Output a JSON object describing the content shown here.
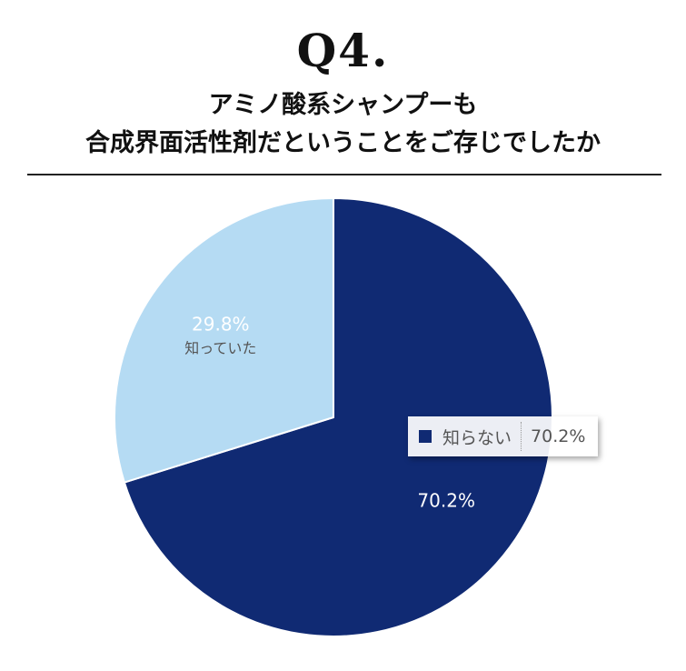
{
  "header": {
    "q_number": "Q4.",
    "line1": "アミノ酸系シャンプーも",
    "line2": "合成界面活性剤だということをご存じでしたか"
  },
  "chart_data": {
    "type": "pie",
    "slices": [
      {
        "label": "知らない",
        "value": 70.2,
        "pct_text": "70.2%",
        "show_label_in_slice": false,
        "color": "#102a73"
      },
      {
        "label": "知っていた",
        "value": 29.8,
        "pct_text": "29.8%",
        "show_label_in_slice": true,
        "color": "#b5dbf3"
      }
    ],
    "start": "12 o'clock",
    "direction": "clockwise"
  },
  "tooltip": {
    "name": "知らない",
    "value": "70.2%",
    "color": "#102a73"
  }
}
